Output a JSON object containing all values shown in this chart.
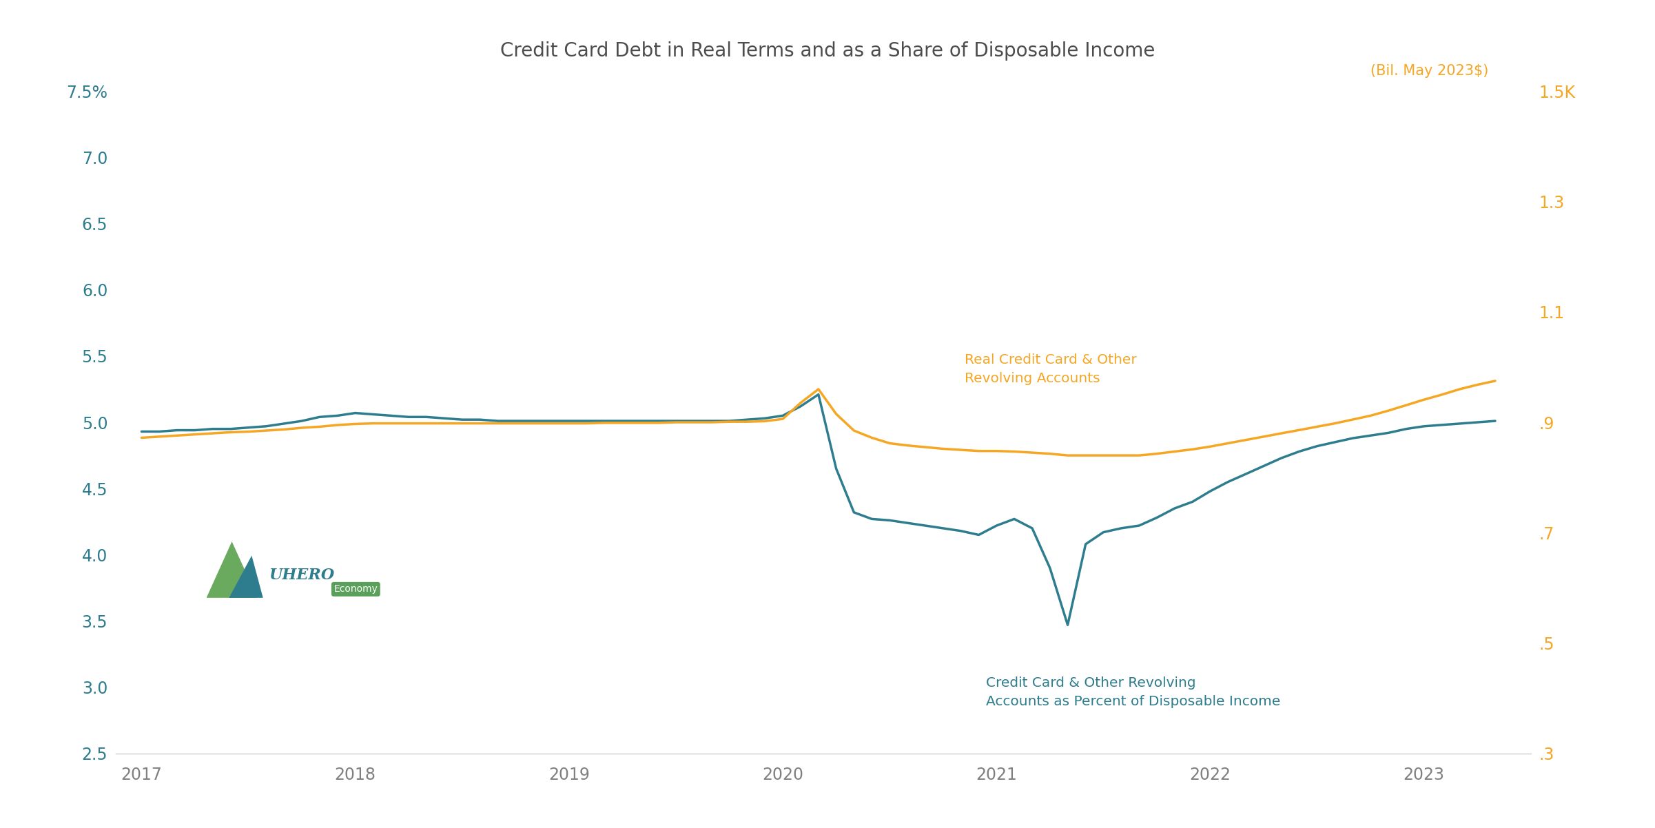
{
  "title": "Credit Card Debt in Real Terms and as a Share of Disposable Income",
  "title_color": "#4d4d4d",
  "title_fontsize": 20,
  "background_color": "#ffffff",
  "teal_color": "#2e7d8e",
  "orange_color": "#f5a623",
  "left_ylim": [
    2.5,
    7.5
  ],
  "left_yticks": [
    2.5,
    3.0,
    3.5,
    4.0,
    4.5,
    5.0,
    5.5,
    6.0,
    6.5,
    7.0,
    7.5
  ],
  "left_yticklabels": [
    "2.5",
    "3.0",
    "3.5",
    "4.0",
    "4.5",
    "5.0",
    "5.5",
    "6.0",
    "6.5",
    "7.0",
    "7.5%"
  ],
  "right_ylim": [
    0.3,
    1.5
  ],
  "right_yticks": [
    0.3,
    0.5,
    0.7,
    0.9,
    1.1,
    1.3,
    1.5
  ],
  "right_yticklabels": [
    ".3",
    ".5",
    ".7",
    ".9",
    "1.1",
    "1.3",
    "1.5K"
  ],
  "right_ylabel_text": "(Bil. May 2023$)",
  "right_ylabel_color": "#f5a623",
  "annotation_teal": "Credit Card & Other Revolving\nAccounts as Percent of Disposable Income",
  "annotation_orange": "Real Credit Card & Other\nRevolving Accounts",
  "annotation_teal_color": "#2e7d8e",
  "annotation_orange_color": "#f5a623",
  "line_width": 2.5,
  "teal_x": [
    2017.0,
    2017.083,
    2017.167,
    2017.25,
    2017.333,
    2017.417,
    2017.5,
    2017.583,
    2017.667,
    2017.75,
    2017.833,
    2017.917,
    2018.0,
    2018.083,
    2018.167,
    2018.25,
    2018.333,
    2018.417,
    2018.5,
    2018.583,
    2018.667,
    2018.75,
    2018.833,
    2018.917,
    2019.0,
    2019.083,
    2019.167,
    2019.25,
    2019.333,
    2019.417,
    2019.5,
    2019.583,
    2019.667,
    2019.75,
    2019.833,
    2019.917,
    2020.0,
    2020.083,
    2020.167,
    2020.25,
    2020.333,
    2020.417,
    2020.5,
    2020.583,
    2020.667,
    2020.75,
    2020.833,
    2020.917,
    2021.0,
    2021.083,
    2021.167,
    2021.25,
    2021.333,
    2021.417,
    2021.5,
    2021.583,
    2021.667,
    2021.75,
    2021.833,
    2021.917,
    2022.0,
    2022.083,
    2022.167,
    2022.25,
    2022.333,
    2022.417,
    2022.5,
    2022.583,
    2022.667,
    2022.75,
    2022.833,
    2022.917,
    2023.0,
    2023.083,
    2023.167,
    2023.25,
    2023.333
  ],
  "teal_y": [
    4.93,
    4.93,
    4.94,
    4.94,
    4.95,
    4.95,
    4.96,
    4.97,
    4.99,
    5.01,
    5.04,
    5.05,
    5.07,
    5.06,
    5.05,
    5.04,
    5.04,
    5.03,
    5.02,
    5.02,
    5.01,
    5.01,
    5.01,
    5.01,
    5.01,
    5.01,
    5.01,
    5.01,
    5.01,
    5.01,
    5.01,
    5.01,
    5.01,
    5.01,
    5.02,
    5.03,
    5.05,
    5.12,
    5.21,
    4.65,
    4.32,
    4.27,
    4.26,
    4.24,
    4.22,
    4.2,
    4.18,
    4.15,
    4.22,
    4.27,
    4.2,
    3.9,
    3.47,
    4.08,
    4.17,
    4.2,
    4.22,
    4.28,
    4.35,
    4.4,
    4.48,
    4.55,
    4.61,
    4.67,
    4.73,
    4.78,
    4.82,
    4.85,
    4.88,
    4.9,
    4.92,
    4.95,
    4.97,
    4.98,
    4.99,
    5.0,
    5.01
  ],
  "orange_x": [
    2017.0,
    2017.083,
    2017.167,
    2017.25,
    2017.333,
    2017.417,
    2017.5,
    2017.583,
    2017.667,
    2017.75,
    2017.833,
    2017.917,
    2018.0,
    2018.083,
    2018.167,
    2018.25,
    2018.333,
    2018.417,
    2018.5,
    2018.583,
    2018.667,
    2018.75,
    2018.833,
    2018.917,
    2019.0,
    2019.083,
    2019.167,
    2019.25,
    2019.333,
    2019.417,
    2019.5,
    2019.583,
    2019.667,
    2019.75,
    2019.833,
    2019.917,
    2020.0,
    2020.083,
    2020.167,
    2020.25,
    2020.333,
    2020.417,
    2020.5,
    2020.583,
    2020.667,
    2020.75,
    2020.833,
    2020.917,
    2021.0,
    2021.083,
    2021.167,
    2021.25,
    2021.333,
    2021.417,
    2021.5,
    2021.583,
    2021.667,
    2021.75,
    2021.833,
    2021.917,
    2022.0,
    2022.083,
    2022.167,
    2022.25,
    2022.333,
    2022.417,
    2022.5,
    2022.583,
    2022.667,
    2022.75,
    2022.833,
    2022.917,
    2023.0,
    2023.083,
    2023.167,
    2023.25,
    2023.333
  ],
  "orange_y": [
    0.872,
    0.874,
    0.876,
    0.878,
    0.88,
    0.882,
    0.883,
    0.885,
    0.887,
    0.89,
    0.892,
    0.895,
    0.897,
    0.898,
    0.898,
    0.898,
    0.898,
    0.898,
    0.898,
    0.898,
    0.898,
    0.898,
    0.898,
    0.898,
    0.898,
    0.898,
    0.899,
    0.899,
    0.899,
    0.899,
    0.9,
    0.9,
    0.9,
    0.901,
    0.901,
    0.902,
    0.906,
    0.935,
    0.96,
    0.915,
    0.885,
    0.872,
    0.862,
    0.858,
    0.855,
    0.852,
    0.85,
    0.848,
    0.848,
    0.847,
    0.845,
    0.843,
    0.84,
    0.84,
    0.84,
    0.84,
    0.84,
    0.843,
    0.847,
    0.851,
    0.856,
    0.862,
    0.868,
    0.874,
    0.88,
    0.886,
    0.892,
    0.898,
    0.905,
    0.912,
    0.921,
    0.931,
    0.941,
    0.95,
    0.96,
    0.968,
    0.975
  ],
  "xticks": [
    2017,
    2018,
    2019,
    2020,
    2021,
    2022,
    2023
  ],
  "xlim": [
    2016.88,
    2023.5
  ],
  "tick_fontsize": 17,
  "axis_color": "#808080"
}
